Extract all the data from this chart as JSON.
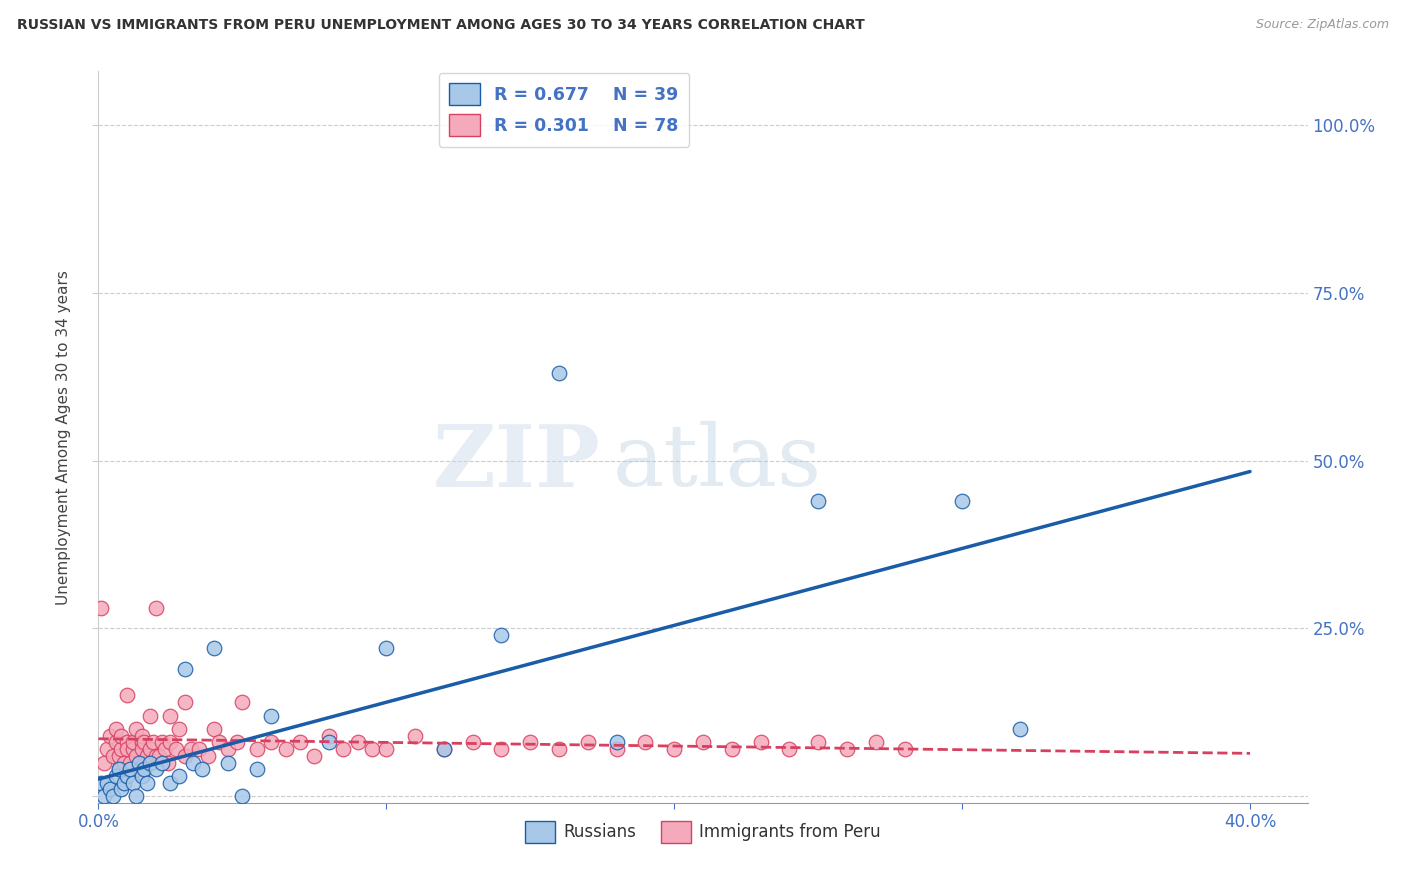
{
  "title": "RUSSIAN VS IMMIGRANTS FROM PERU UNEMPLOYMENT AMONG AGES 30 TO 34 YEARS CORRELATION CHART",
  "source": "Source: ZipAtlas.com",
  "ylabel": "Unemployment Among Ages 30 to 34 years",
  "watermark": "ZIPatlas",
  "xlim": [
    0.0,
    0.42
  ],
  "ylim": [
    -0.01,
    1.08
  ],
  "color_russian": "#a8c8e8",
  "color_peru": "#f4aabb",
  "color_russian_line": "#1a5ca8",
  "color_peru_line": "#d84060",
  "grid_color": "#cccccc",
  "background_color": "#ffffff",
  "russians_x": [
    0.001,
    0.002,
    0.003,
    0.004,
    0.005,
    0.006,
    0.007,
    0.008,
    0.009,
    0.01,
    0.011,
    0.012,
    0.013,
    0.014,
    0.015,
    0.016,
    0.017,
    0.018,
    0.02,
    0.022,
    0.025,
    0.028,
    0.03,
    0.033,
    0.036,
    0.04,
    0.045,
    0.05,
    0.055,
    0.06,
    0.08,
    0.1,
    0.12,
    0.14,
    0.16,
    0.18,
    0.25,
    0.3,
    0.32
  ],
  "russians_y": [
    0.02,
    0.0,
    0.02,
    0.01,
    0.0,
    0.03,
    0.04,
    0.01,
    0.02,
    0.03,
    0.04,
    0.02,
    0.0,
    0.05,
    0.03,
    0.04,
    0.02,
    0.05,
    0.04,
    0.05,
    0.02,
    0.03,
    0.19,
    0.05,
    0.04,
    0.22,
    0.05,
    0.0,
    0.04,
    0.12,
    0.08,
    0.22,
    0.07,
    0.24,
    0.63,
    0.08,
    0.44,
    0.44,
    0.1
  ],
  "peru_x": [
    0.001,
    0.002,
    0.003,
    0.004,
    0.005,
    0.006,
    0.006,
    0.007,
    0.007,
    0.008,
    0.008,
    0.009,
    0.01,
    0.01,
    0.01,
    0.011,
    0.012,
    0.012,
    0.013,
    0.013,
    0.014,
    0.015,
    0.015,
    0.015,
    0.016,
    0.016,
    0.017,
    0.018,
    0.018,
    0.019,
    0.02,
    0.02,
    0.021,
    0.022,
    0.023,
    0.024,
    0.025,
    0.025,
    0.027,
    0.028,
    0.03,
    0.03,
    0.032,
    0.035,
    0.038,
    0.04,
    0.042,
    0.045,
    0.048,
    0.05,
    0.055,
    0.06,
    0.065,
    0.07,
    0.075,
    0.08,
    0.085,
    0.09,
    0.095,
    0.1,
    0.11,
    0.12,
    0.13,
    0.14,
    0.15,
    0.16,
    0.17,
    0.18,
    0.19,
    0.2,
    0.21,
    0.22,
    0.23,
    0.24,
    0.25,
    0.26,
    0.27,
    0.28
  ],
  "peru_y": [
    0.28,
    0.05,
    0.07,
    0.09,
    0.06,
    0.08,
    0.1,
    0.04,
    0.06,
    0.07,
    0.09,
    0.05,
    0.08,
    0.07,
    0.15,
    0.05,
    0.07,
    0.08,
    0.06,
    0.1,
    0.04,
    0.08,
    0.07,
    0.09,
    0.05,
    0.08,
    0.06,
    0.12,
    0.07,
    0.08,
    0.06,
    0.28,
    0.06,
    0.08,
    0.07,
    0.05,
    0.12,
    0.08,
    0.07,
    0.1,
    0.06,
    0.14,
    0.07,
    0.07,
    0.06,
    0.1,
    0.08,
    0.07,
    0.08,
    0.14,
    0.07,
    0.08,
    0.07,
    0.08,
    0.06,
    0.09,
    0.07,
    0.08,
    0.07,
    0.07,
    0.09,
    0.07,
    0.08,
    0.07,
    0.08,
    0.07,
    0.08,
    0.07,
    0.08,
    0.07,
    0.08,
    0.07,
    0.08,
    0.07,
    0.08,
    0.07,
    0.08,
    0.07
  ]
}
